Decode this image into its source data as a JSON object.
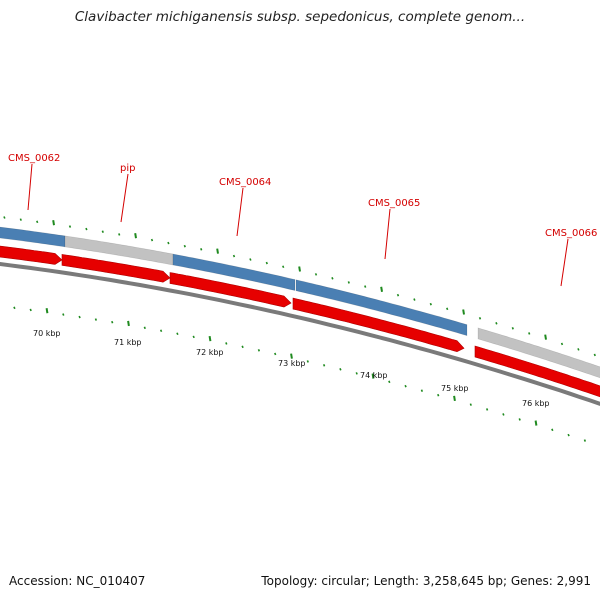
{
  "title": "Clavibacter michiganensis subsp. sepedonicus, complete genom...",
  "footer": {
    "accession": "Accession: NC_010407",
    "summary": "Topology: circular; Length: 3,258,645 bp; Genes: 2,991"
  },
  "colors": {
    "gene_blue": "#4a7fb3",
    "gene_gray": "#c2c2c2",
    "cds_red": "#e60000",
    "backbone": "#7a7a7a",
    "tick_green": "#1f8a1f",
    "label_red": "#d40000"
  },
  "genes": [
    {
      "label": "CMS_0062",
      "color": "blue"
    },
    {
      "label": "pip",
      "color": "gray"
    },
    {
      "label": "CMS_0064",
      "color": "blue"
    },
    {
      "label": "CMS_0065",
      "color": "blue"
    },
    {
      "label": "CMS_0066",
      "color": "gray"
    }
  ],
  "scale_labels": [
    "70 kbp",
    "71 kbp",
    "72 kbp",
    "73 kbp",
    "74 kbp",
    "75 kbp",
    "76 kbp"
  ]
}
